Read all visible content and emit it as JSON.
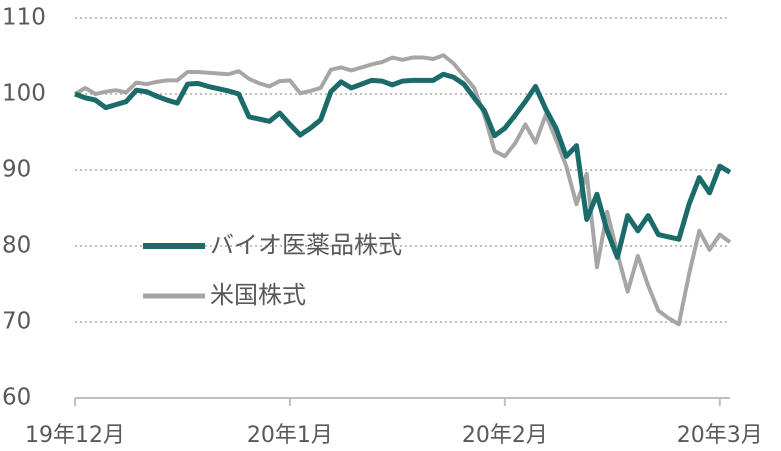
{
  "chart_data": {
    "type": "line",
    "categories": [
      "19年12月",
      null,
      null,
      null,
      null,
      null,
      null,
      null,
      null,
      null,
      null,
      null,
      null,
      null,
      null,
      null,
      null,
      null,
      null,
      null,
      null,
      "20年1月",
      null,
      null,
      null,
      null,
      null,
      null,
      null,
      null,
      null,
      null,
      null,
      null,
      null,
      null,
      null,
      null,
      null,
      null,
      null,
      null,
      "20年2月",
      null,
      null,
      null,
      null,
      null,
      null,
      null,
      null,
      null,
      null,
      null,
      null,
      null,
      null,
      null,
      null,
      null,
      null,
      null,
      null,
      "20年3月",
      null
    ],
    "series": [
      {
        "name": "バイオ医薬品株式",
        "color": "#1b6b6b",
        "values": [
          100,
          99.5,
          99.2,
          98.2,
          98.6,
          99,
          100.5,
          100.3,
          99.7,
          99.2,
          98.8,
          101.3,
          101.4,
          101,
          100.7,
          100.4,
          100,
          97,
          96.7,
          96.4,
          97.5,
          96,
          94.6,
          95.5,
          96.6,
          100.3,
          101.6,
          100.8,
          101.3,
          101.8,
          101.7,
          101.2,
          101.7,
          101.8,
          101.8,
          101.8,
          102.6,
          102.2,
          101.3,
          99.5,
          97.8,
          94.5,
          95.5,
          97.2,
          99,
          101,
          98,
          95.5,
          91.8,
          93.2,
          83.5,
          86.8,
          82,
          78.5,
          84,
          82,
          84,
          81.5,
          81.2,
          80.9,
          85.5,
          89,
          87,
          90.5,
          89.7
        ]
      },
      {
        "name": "米国株式",
        "color": "#a6a6a6",
        "values": [
          100,
          100.8,
          100,
          100.3,
          100.5,
          100.2,
          101.5,
          101.3,
          101.6,
          101.8,
          101.8,
          102.9,
          102.9,
          102.8,
          102.7,
          102.6,
          103,
          102,
          101.4,
          101,
          101.7,
          101.8,
          100.1,
          100.4,
          100.8,
          103.2,
          103.5,
          103.1,
          103.5,
          103.9,
          104.2,
          104.8,
          104.5,
          104.8,
          104.8,
          104.6,
          105.1,
          104,
          102.4,
          100.8,
          97.2,
          92.5,
          91.8,
          93.5,
          96,
          93.6,
          97.3,
          94,
          90.5,
          85.5,
          89.5,
          77.2,
          84.5,
          79,
          74,
          78.7,
          74.8,
          71.5,
          70.5,
          69.7,
          76.3,
          82,
          79.5,
          81.5,
          80.5
        ]
      }
    ],
    "ylim": [
      60,
      110
    ],
    "yticks": [
      60,
      70,
      80,
      90,
      100,
      110
    ],
    "grid": true
  }
}
